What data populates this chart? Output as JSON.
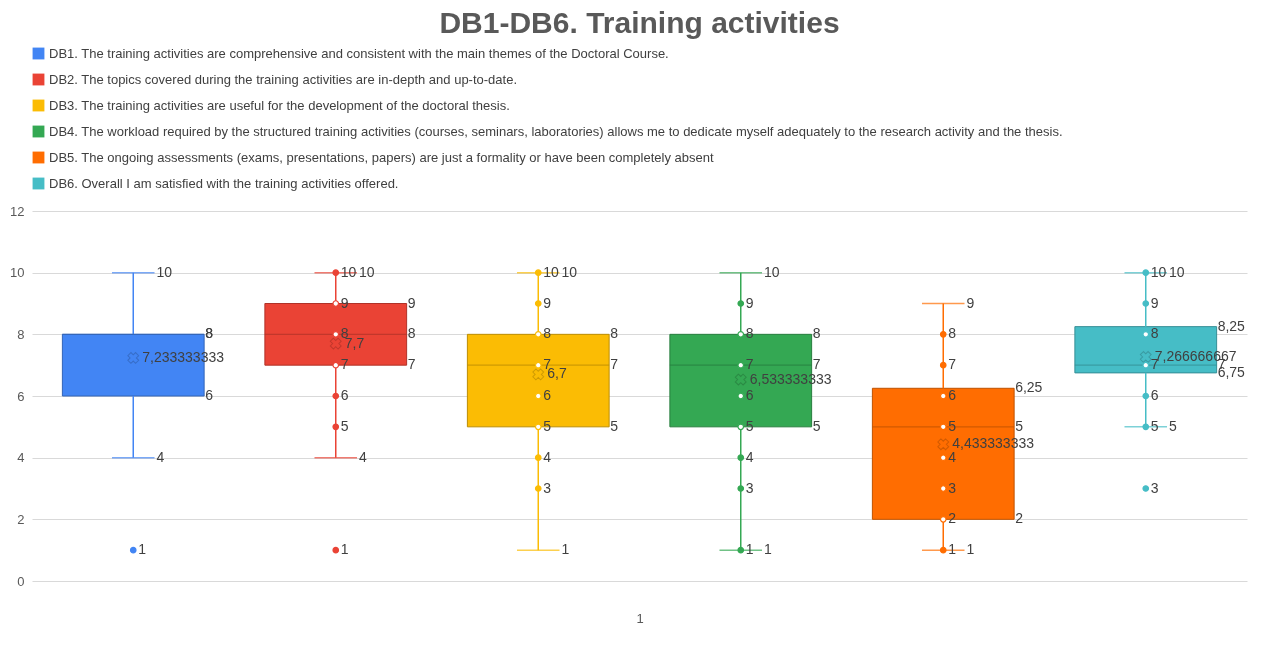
{
  "chart_data": {
    "type": "box",
    "title": "DB1-DB6. Training activities",
    "xlabel": "1",
    "categories": [
      null,
      null,
      null,
      null,
      null,
      null
    ],
    "ylim": [
      0,
      12
    ],
    "yticks": [
      0,
      2,
      4,
      6,
      8,
      10,
      12
    ],
    "grid": "y",
    "legend": "top",
    "marker": "circle",
    "annotations": [
      "4",
      "10",
      "6",
      "8",
      "8",
      "7,233333333",
      "1",
      "4",
      "10",
      "7",
      "8",
      "9",
      "7,7",
      "10",
      "9",
      "8",
      "7",
      "6",
      "5",
      "1",
      "1",
      "10",
      "5",
      "7",
      "8",
      "6,7",
      "10",
      "9",
      "8",
      "7",
      "6",
      "5",
      "4",
      "3",
      "1",
      "10",
      "5",
      "7",
      "8",
      "6,533333333",
      "9",
      "8",
      "7",
      "6",
      "5",
      "4",
      "3",
      "1",
      "1",
      "9",
      "2",
      "5",
      "6,25",
      "4,433333333",
      "8",
      "7",
      "6",
      "5",
      "4",
      "3",
      "2",
      "1",
      "5",
      "10",
      "6,75",
      "7",
      "8,25",
      "7,266666667",
      "10",
      "9",
      "8",
      "7",
      "6",
      "5",
      "3"
    ],
    "series": [
      {
        "name": "DB1. The training activities are comprehensive and consistent with the main themes of the Doctoral Course.",
        "color": "#4285f4",
        "boxes": [
          {
            "low": 4,
            "q1": 6,
            "median": 8,
            "q3": 8,
            "high": 10,
            "mean": 7.233333333,
            "outliers": [
              1
            ]
          },
          null,
          null,
          null,
          null,
          null
        ]
      },
      {
        "name": "DB2. The topics covered during the training activities are in-depth and up-to-date.",
        "color": "#ea4335",
        "boxes": [
          null,
          {
            "low": 4,
            "q1": 7,
            "median": 8,
            "q3": 9,
            "high": 10,
            "mean": 7.7,
            "outliers": [
              10,
              9,
              8,
              7,
              6,
              5,
              1
            ]
          },
          null,
          null,
          null,
          null
        ]
      },
      {
        "name": "DB3. The training activities are useful for the development of the doctoral thesis.",
        "color": "#fbbc04",
        "boxes": [
          null,
          null,
          {
            "low": 1,
            "q1": 5,
            "median": 7,
            "q3": 8,
            "high": 10,
            "mean": 6.7,
            "outliers": [
              10,
              9,
              8,
              7,
              6,
              5,
              4,
              3
            ]
          },
          null,
          null,
          null
        ]
      },
      {
        "name": "DB4. The workload required by the structured training activities (courses, seminars, laboratories) allows me to dedicate myself adequately to the research activity and the thesis.",
        "color": "#34a853",
        "boxes": [
          null,
          null,
          null,
          {
            "low": 1,
            "q1": 5,
            "median": 7,
            "q3": 8,
            "high": 10,
            "mean": 6.533333333,
            "outliers": [
              9,
              8,
              7,
              6,
              5,
              4,
              3,
              1
            ]
          },
          null,
          null
        ]
      },
      {
        "name": "DB5. The ongoing assessments (exams, presentations, papers) are just a formality or have been completely absent",
        "color": "#ff6d01",
        "boxes": [
          null,
          null,
          null,
          null,
          {
            "low": 1,
            "q1": 2,
            "median": 5,
            "q3": 6.25,
            "high": 9,
            "mean": 4.433333333,
            "outliers": [
              8,
              7,
              6,
              5,
              4,
              3,
              2,
              1
            ]
          },
          null
        ]
      },
      {
        "name": "DB6. Overall I am satisfied with the training activities offered.",
        "color": "#46bdc6",
        "boxes": [
          null,
          null,
          null,
          null,
          null,
          {
            "low": 5,
            "q1": 6.75,
            "median": 7,
            "q3": 8.25,
            "high": 10,
            "mean": 7.266666667,
            "outliers": [
              10,
              9,
              8,
              7,
              6,
              5,
              3
            ]
          }
        ]
      }
    ]
  }
}
